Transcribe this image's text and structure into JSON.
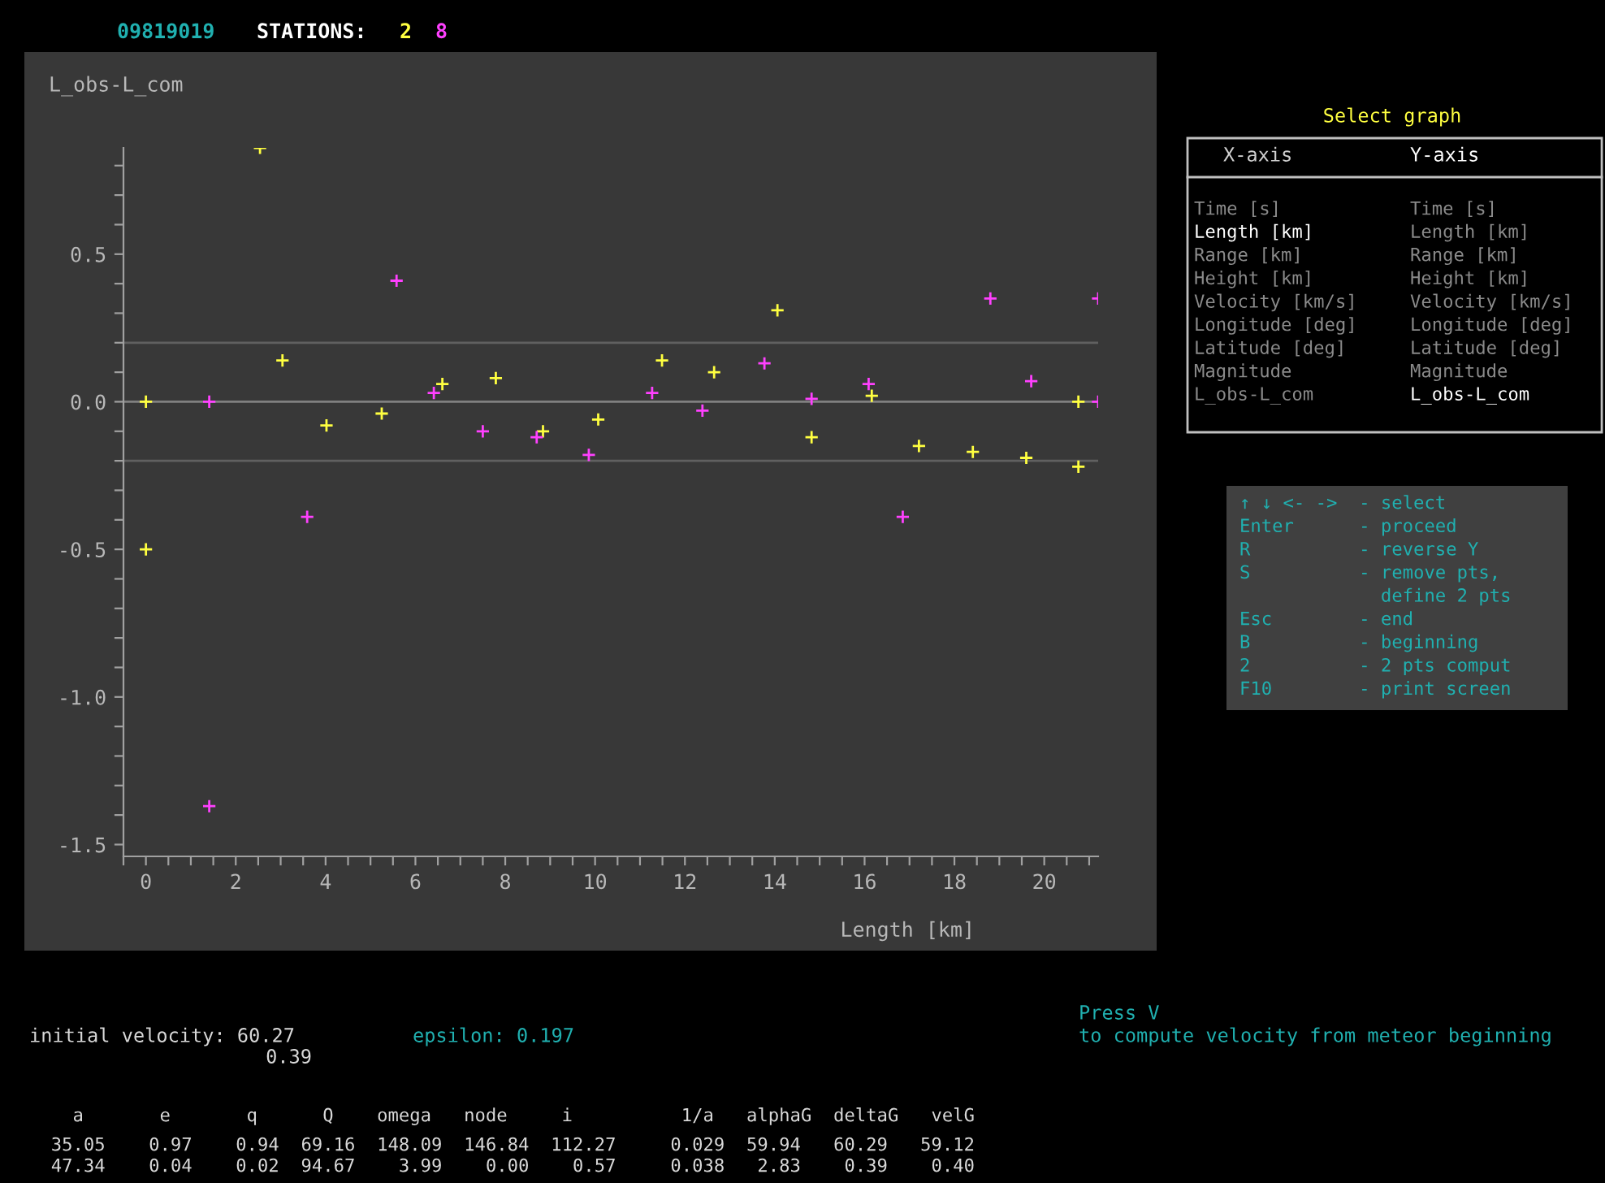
{
  "chart_data": {
    "type": "scatter",
    "title": "09819019",
    "xlabel": "Length [km]",
    "ylabel": "L_obs-L_com",
    "xlim": [
      -0.5,
      21.2
    ],
    "ylim": [
      -1.54,
      0.86
    ],
    "xticks": [
      {
        "value": -0.5,
        "label": null
      },
      {
        "value": 0,
        "label": "0"
      },
      {
        "value": 0.5,
        "label": null
      },
      {
        "value": 1,
        "label": null
      },
      {
        "value": 1.5,
        "label": null
      },
      {
        "value": 2,
        "label": "2"
      },
      {
        "value": 2.5,
        "label": null
      },
      {
        "value": 3,
        "label": null
      },
      {
        "value": 3.5,
        "label": null
      },
      {
        "value": 4,
        "label": "4"
      },
      {
        "value": 4.5,
        "label": null
      },
      {
        "value": 5,
        "label": null
      },
      {
        "value": 5.5,
        "label": null
      },
      {
        "value": 6,
        "label": "6"
      },
      {
        "value": 6.5,
        "label": null
      },
      {
        "value": 7,
        "label": null
      },
      {
        "value": 7.5,
        "label": null
      },
      {
        "value": 8,
        "label": "8"
      },
      {
        "value": 8.5,
        "label": null
      },
      {
        "value": 9,
        "label": null
      },
      {
        "value": 9.5,
        "label": null
      },
      {
        "value": 10,
        "label": "10"
      },
      {
        "value": 10.5,
        "label": null
      },
      {
        "value": 11,
        "label": null
      },
      {
        "value": 11.5,
        "label": null
      },
      {
        "value": 12,
        "label": "12"
      },
      {
        "value": 12.5,
        "label": null
      },
      {
        "value": 13,
        "label": null
      },
      {
        "value": 13.5,
        "label": null
      },
      {
        "value": 14,
        "label": "14"
      },
      {
        "value": 14.5,
        "label": null
      },
      {
        "value": 15,
        "label": null
      },
      {
        "value": 15.5,
        "label": null
      },
      {
        "value": 16,
        "label": "16"
      },
      {
        "value": 16.5,
        "label": null
      },
      {
        "value": 17,
        "label": null
      },
      {
        "value": 17.5,
        "label": null
      },
      {
        "value": 18,
        "label": "18"
      },
      {
        "value": 18.5,
        "label": null
      },
      {
        "value": 19,
        "label": null
      },
      {
        "value": 19.5,
        "label": null
      },
      {
        "value": 20,
        "label": "20"
      },
      {
        "value": 20.5,
        "label": null
      },
      {
        "value": 21,
        "label": null
      }
    ],
    "yticks": [
      {
        "value": -1.5,
        "label": "-1.5"
      },
      {
        "value": -1.4,
        "label": null
      },
      {
        "value": -1.3,
        "label": null
      },
      {
        "value": -1.2,
        "label": null
      },
      {
        "value": -1.1,
        "label": null
      },
      {
        "value": -1.0,
        "label": "-1.0"
      },
      {
        "value": -0.9,
        "label": null
      },
      {
        "value": -0.8,
        "label": null
      },
      {
        "value": -0.7,
        "label": null
      },
      {
        "value": -0.6,
        "label": null
      },
      {
        "value": -0.5,
        "label": "-0.5"
      },
      {
        "value": -0.4,
        "label": null
      },
      {
        "value": -0.3,
        "label": null
      },
      {
        "value": -0.2,
        "label": null
      },
      {
        "value": -0.1,
        "label": null
      },
      {
        "value": 0.0,
        "label": "0.0"
      },
      {
        "value": 0.1,
        "label": null
      },
      {
        "value": 0.2,
        "label": null
      },
      {
        "value": 0.3,
        "label": null
      },
      {
        "value": 0.4,
        "label": null
      },
      {
        "value": 0.5,
        "label": "0.5"
      },
      {
        "value": 0.6,
        "label": null
      },
      {
        "value": 0.7,
        "label": null
      },
      {
        "value": 0.8,
        "label": null
      }
    ],
    "marker": "cross",
    "grid": false,
    "ref_lines": [
      {
        "axis": "y",
        "value": 0,
        "color": "#808080"
      },
      {
        "axis": "y",
        "value": 0.2,
        "color": "#606060"
      },
      {
        "axis": "y",
        "value": -0.2,
        "color": "#606060"
      }
    ],
    "series": [
      {
        "name": "2",
        "color": "#ffff40",
        "x": [
          0,
          0,
          2.54,
          3.04,
          4.02,
          5.25,
          6.6,
          7.79,
          8.84,
          10.07,
          11.49,
          12.65,
          14.06,
          14.82,
          16.16,
          17.21,
          18.41,
          19.6,
          20.76,
          20.76
        ],
        "values": [
          0.0,
          -0.5,
          0.86,
          0.14,
          -0.08,
          -0.04,
          0.06,
          0.08,
          -0.1,
          -0.06,
          0.14,
          0.1,
          0.31,
          -0.12,
          0.02,
          -0.15,
          -0.17,
          -0.19,
          -0.22,
          0.0
        ]
      },
      {
        "name": "8",
        "color": "#ff40ff",
        "x": [
          1.41,
          1.41,
          3.59,
          5.58,
          6.41,
          7.5,
          8.7,
          9.86,
          11.27,
          12.39,
          13.77,
          14.82,
          16.09,
          16.85,
          18.8,
          19.71,
          21.2,
          21.2
        ],
        "values": [
          0.0,
          -1.37,
          -0.39,
          0.41,
          0.03,
          -0.1,
          -0.12,
          -0.18,
          0.03,
          -0.03,
          0.13,
          0.01,
          0.06,
          -0.39,
          0.35,
          0.07,
          0.35,
          0.0
        ]
      }
    ],
    "annotations": [
      "STATIONS:",
      "Select graph",
      "X-axis",
      "Y-axis",
      "Time [s]",
      "Length [km]",
      "Range [km]",
      "Height [km]",
      "Velocity [km/s]",
      "Longitude [deg]",
      "Latitude [deg]",
      "Magnitude",
      "L_obs-L_com",
      "Time [s]",
      "Length [km]",
      "Range [km]",
      "Height [km]",
      "Velocity [km/s]",
      "Longitude [deg]",
      "Latitude [deg]",
      "Magnitude",
      "L_obs-L_com",
      "↑ ↓ <- ->  - select",
      "Enter      - proceed",
      "R          - reverse Y",
      "S          - remove pts,",
      "             define 2 pts",
      "Esc        - end",
      "B          - beginning",
      "2          - 2 pts comput",
      "F10        - print screen",
      "initial velocity: 60.27",
      "0.39",
      "epsilon: 0.197",
      "Press V",
      "to compute velocity from meteor beginning",
      "    a       e       q      Q    omega   node     i          1/a   alphaG  deltaG   velG",
      "  35.05    0.97    0.94  69.16  148.09  146.84  112.27     0.029  59.94   60.29   59.12",
      "  47.34    0.04    0.02  94.67    3.99    0.00    0.57     0.038   2.83    0.39    0.40"
    ]
  }
}
